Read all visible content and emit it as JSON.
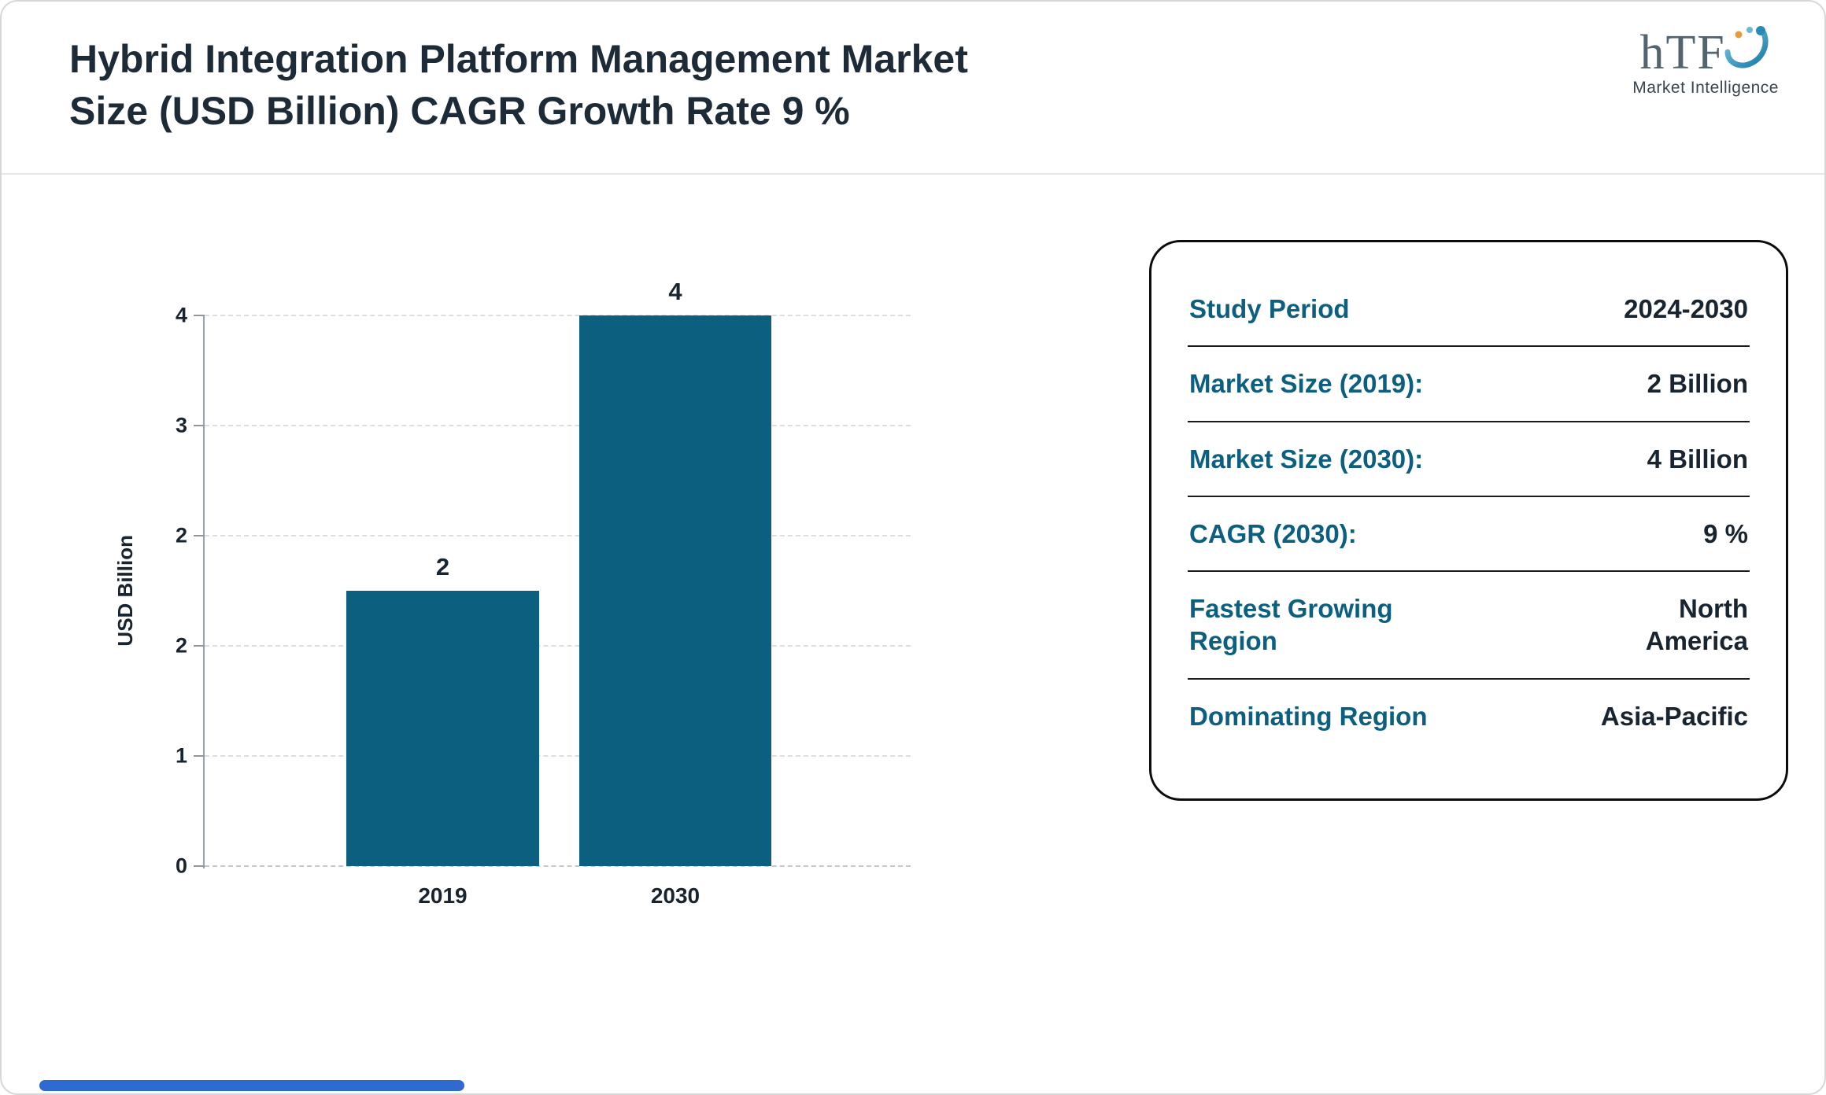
{
  "header": {
    "title_line1": "Hybrid Integration Platform Management Market",
    "title_line2": "Size (USD Billion) CAGR Growth Rate 9 %",
    "logo": {
      "text": "hTF",
      "subtext": "Market Intelligence"
    }
  },
  "chart_data": {
    "type": "bar",
    "title": "Hybrid Integration Platform Management Market Size (USD Billion) CAGR Growth Rate 9 %",
    "categories": [
      "2019",
      "2030"
    ],
    "values": [
      2,
      4
    ],
    "bar_value_labels": [
      "2",
      "4"
    ],
    "ylabel": "USD Billion",
    "ylim": [
      0,
      4
    ],
    "ytick_labels_top_to_bottom": [
      "4",
      "3",
      "2",
      "2",
      "1",
      "0"
    ],
    "grid": "dashed horizontal gridlines",
    "legend": "none",
    "bar_color": "#0D5F7F"
  },
  "info_card": {
    "rows": [
      {
        "label": "Study Period",
        "value": "2024-2030"
      },
      {
        "label": "Market Size (2019):",
        "value": "2 Billion"
      },
      {
        "label": "Market Size (2030):",
        "value": "4 Billion"
      },
      {
        "label": "CAGR (2030):",
        "value": "9 %"
      },
      {
        "label": "Fastest Growing Region",
        "value": "North America"
      },
      {
        "label": "Dominating Region",
        "value": "Asia-Pacific"
      }
    ]
  },
  "colors": {
    "bar": "#0D5F7F",
    "card_label_teal": "#0D5F7F",
    "text_dark": "#18242F",
    "accent_bar": "#2E6AD0"
  }
}
